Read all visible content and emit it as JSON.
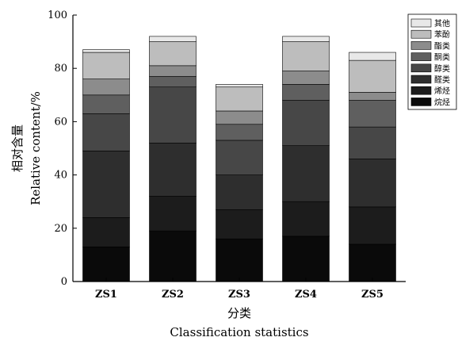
{
  "chart_data": {
    "type": "bar",
    "stacked": true,
    "categories": [
      "ZS1",
      "ZS2",
      "ZS3",
      "ZS4",
      "ZS5"
    ],
    "series": [
      {
        "name": "烷烃",
        "color": "#0a0a0a",
        "values": [
          13,
          19,
          16,
          17,
          14
        ]
      },
      {
        "name": "烯烃",
        "color": "#1c1c1c",
        "values": [
          11,
          13,
          11,
          13,
          14
        ]
      },
      {
        "name": "醛类",
        "color": "#2e2e2e",
        "values": [
          25,
          20,
          13,
          21,
          18
        ]
      },
      {
        "name": "醇类",
        "color": "#474747",
        "values": [
          14,
          21,
          13,
          17,
          12
        ]
      },
      {
        "name": "酮类",
        "color": "#5f5f5f",
        "values": [
          7,
          4,
          6,
          6,
          10
        ]
      },
      {
        "name": "酯类",
        "color": "#8c8c8c",
        "values": [
          6,
          4,
          5,
          5,
          3
        ]
      },
      {
        "name": "苯酚",
        "color": "#bdbdbd",
        "values": [
          10,
          9,
          9,
          11,
          12
        ]
      },
      {
        "name": "其他",
        "color": "#e8e8e8",
        "values": [
          1,
          2,
          1,
          2,
          3
        ]
      }
    ],
    "ylim": [
      0,
      100
    ],
    "yticks": [
      0,
      20,
      40,
      60,
      80,
      100
    ],
    "ylabel_cn": "相对含量",
    "ylabel_en": "Relative content/%",
    "xlabel_cn": "分类",
    "xlabel_en": "Classification statistics",
    "legend_position": "top-right",
    "legend_order": [
      "其他",
      "苯酚",
      "酯类",
      "酮类",
      "醇类",
      "醛类",
      "烯烃",
      "烷烃"
    ],
    "grid": false
  }
}
